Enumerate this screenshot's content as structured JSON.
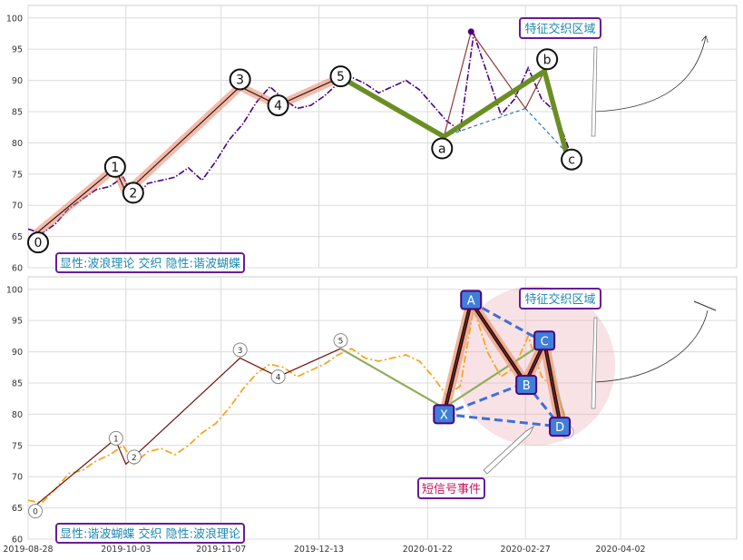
{
  "chart_data": [
    {
      "type": "line",
      "panel": "top",
      "yticks": [
        60,
        65,
        70,
        75,
        80,
        85,
        90,
        95,
        100
      ],
      "ylim": [
        60,
        102
      ],
      "grid": true,
      "price_series": {
        "style": "dash-dot",
        "color": "#4b0082",
        "x": [
          "2019-08-28",
          "2019-09-02",
          "2019-09-07",
          "2019-09-12",
          "2019-09-17",
          "2019-09-22",
          "2019-09-27",
          "2019-10-02",
          "2019-10-06",
          "2019-10-11",
          "2019-10-16",
          "2019-10-21",
          "2019-10-26",
          "2019-10-31",
          "2019-11-05",
          "2019-11-10",
          "2019-11-15",
          "2019-11-20",
          "2019-11-25",
          "2019-11-30",
          "2019-12-05",
          "2019-12-10",
          "2019-12-15",
          "2019-12-20",
          "2019-12-25",
          "2019-12-30",
          "2020-01-04",
          "2020-01-09",
          "2020-01-14",
          "2020-01-19",
          "2020-01-24",
          "2020-01-29",
          "2020-02-03",
          "2020-02-08",
          "2020-02-13",
          "2020-02-18",
          "2020-02-23",
          "2020-02-28",
          "2020-03-04",
          "2020-03-09",
          "2020-03-14"
        ],
        "y": [
          66.2,
          65.5,
          67.0,
          69.5,
          71.0,
          72.5,
          73.0,
          74.5,
          71.0,
          73.5,
          74.0,
          74.5,
          76.0,
          74.0,
          77.0,
          80.5,
          83.0,
          86.5,
          89.0,
          87.0,
          85.5,
          86.0,
          87.5,
          89.5,
          90.5,
          89.5,
          88.0,
          89.0,
          90.0,
          88.5,
          86.0,
          83.5,
          82.0,
          97.5,
          91.0,
          84.5,
          87.0,
          92.0,
          87.0,
          85.0,
          79.0
        ]
      },
      "waves": {
        "impulse": [
          {
            "label": "0",
            "x": "2019-08-31",
            "y": 65.5
          },
          {
            "label": "1",
            "x": "2019-09-29",
            "y": 76.0
          },
          {
            "label": "2",
            "x": "2019-10-03",
            "y": 72.0
          },
          {
            "label": "3",
            "x": "2019-11-14",
            "y": 89.0
          },
          {
            "label": "4",
            "x": "2019-11-28",
            "y": 86.0
          },
          {
            "label": "5",
            "x": "2019-12-21",
            "y": 90.5
          }
        ],
        "correction": [
          {
            "label": "a",
            "x": "2020-01-28",
            "y": 81.0
          },
          {
            "label": "b",
            "x": "2020-03-05",
            "y": 91.5
          },
          {
            "label": "c",
            "x": "2020-03-13",
            "y": 78.5
          }
        ],
        "harmonic_hint": [
          {
            "x": "2020-01-28",
            "y": 81.0
          },
          {
            "x": "2020-02-07",
            "y": 97.8
          },
          {
            "x": "2020-02-27",
            "y": 85.5
          },
          {
            "x": "2020-03-05",
            "y": 91.5
          },
          {
            "x": "2020-03-13",
            "y": 78.5
          }
        ]
      },
      "annotations": {
        "zone_label": "特征交织区域",
        "footer_label": "显性:波浪理论 交织 隐性:谐波蝴蝶"
      }
    },
    {
      "type": "line",
      "panel": "bottom",
      "yticks": [
        60,
        65,
        70,
        75,
        80,
        85,
        90,
        95,
        100
      ],
      "ylim": [
        60,
        102
      ],
      "xticks": [
        "2019-08-28",
        "2019-10-03",
        "2019-11-07",
        "2019-12-13",
        "2020-01-22",
        "2020-02-27",
        "2020-04-02"
      ],
      "grid": true,
      "price_series": {
        "style": "dash-dot",
        "color": "#f5a623",
        "x": [
          "2019-08-28",
          "2019-09-02",
          "2019-09-07",
          "2019-09-12",
          "2019-09-17",
          "2019-09-22",
          "2019-09-27",
          "2019-10-02",
          "2019-10-06",
          "2019-10-11",
          "2019-10-16",
          "2019-10-21",
          "2019-10-26",
          "2019-10-31",
          "2019-11-05",
          "2019-11-10",
          "2019-11-15",
          "2019-11-20",
          "2019-11-25",
          "2019-11-30",
          "2019-12-05",
          "2019-12-10",
          "2019-12-15",
          "2019-12-20",
          "2019-12-25",
          "2019-12-30",
          "2020-01-04",
          "2020-01-09",
          "2020-01-14",
          "2020-01-19",
          "2020-01-24",
          "2020-01-29",
          "2020-02-03",
          "2020-02-08",
          "2020-02-13",
          "2020-02-18",
          "2020-02-23",
          "2020-02-28",
          "2020-03-04",
          "2020-03-09",
          "2020-03-14"
        ],
        "y": [
          66.2,
          65.8,
          68.0,
          70.5,
          71.0,
          72.5,
          73.5,
          75.0,
          72.0,
          74.0,
          74.5,
          73.5,
          75.0,
          77.0,
          78.5,
          81.0,
          84.0,
          86.5,
          88.0,
          87.5,
          86.0,
          87.0,
          88.0,
          89.5,
          90.5,
          89.0,
          88.5,
          89.0,
          89.5,
          88.5,
          86.0,
          83.0,
          84.5,
          97.0,
          90.0,
          86.0,
          87.5,
          92.5,
          86.0,
          84.0,
          78.0
        ]
      },
      "waves": {
        "impulse": [
          {
            "label": "0",
            "x": "2019-08-31",
            "y": 65.5
          },
          {
            "label": "1",
            "x": "2019-09-29",
            "y": 76.0
          },
          {
            "label": "2",
            "x": "2019-10-03",
            "y": 72.0
          },
          {
            "label": "3",
            "x": "2019-11-14",
            "y": 89.0
          },
          {
            "label": "4",
            "x": "2019-11-28",
            "y": 86.0
          },
          {
            "label": "5",
            "x": "2019-12-21",
            "y": 90.5
          }
        ],
        "correction": [
          {
            "x": "2020-01-28",
            "y": 81.0
          },
          {
            "x": "2020-03-05",
            "y": 91.5
          },
          {
            "x": "2020-03-13",
            "y": 78.5
          }
        ]
      },
      "harmonic_butterfly": [
        {
          "label": "X",
          "x": "2020-01-28",
          "y": 80.0
        },
        {
          "label": "A",
          "x": "2020-02-07",
          "y": 98.0
        },
        {
          "label": "B",
          "x": "2020-02-27",
          "y": 85.0
        },
        {
          "label": "C",
          "x": "2020-03-05",
          "y": 91.5
        },
        {
          "label": "D",
          "x": "2020-03-11",
          "y": 78.0
        }
      ],
      "annotations": {
        "zone_label": "特征交织区域",
        "signal_label": "短信号事件",
        "footer_label": "显性:谐波蝴蝶 交织 隐性:波浪理论",
        "hidden_label": "c"
      }
    }
  ]
}
